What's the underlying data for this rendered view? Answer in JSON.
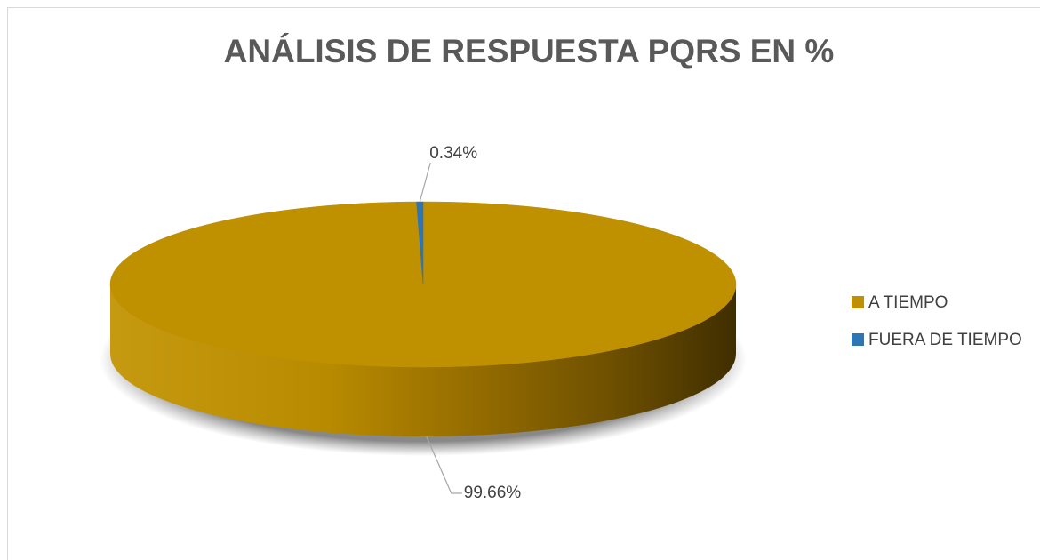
{
  "chart_data": {
    "type": "pie",
    "title": "ANÁLISIS DE RESPUESTA PQRS EN %",
    "categories": [
      "A TIEMPO",
      "FUERA DE TIEMPO"
    ],
    "values": [
      99.66,
      0.34
    ],
    "value_labels": [
      "99.66%",
      "0.34%"
    ],
    "colors": [
      "#bf9000",
      "#2e75b6"
    ],
    "legend": "right"
  }
}
